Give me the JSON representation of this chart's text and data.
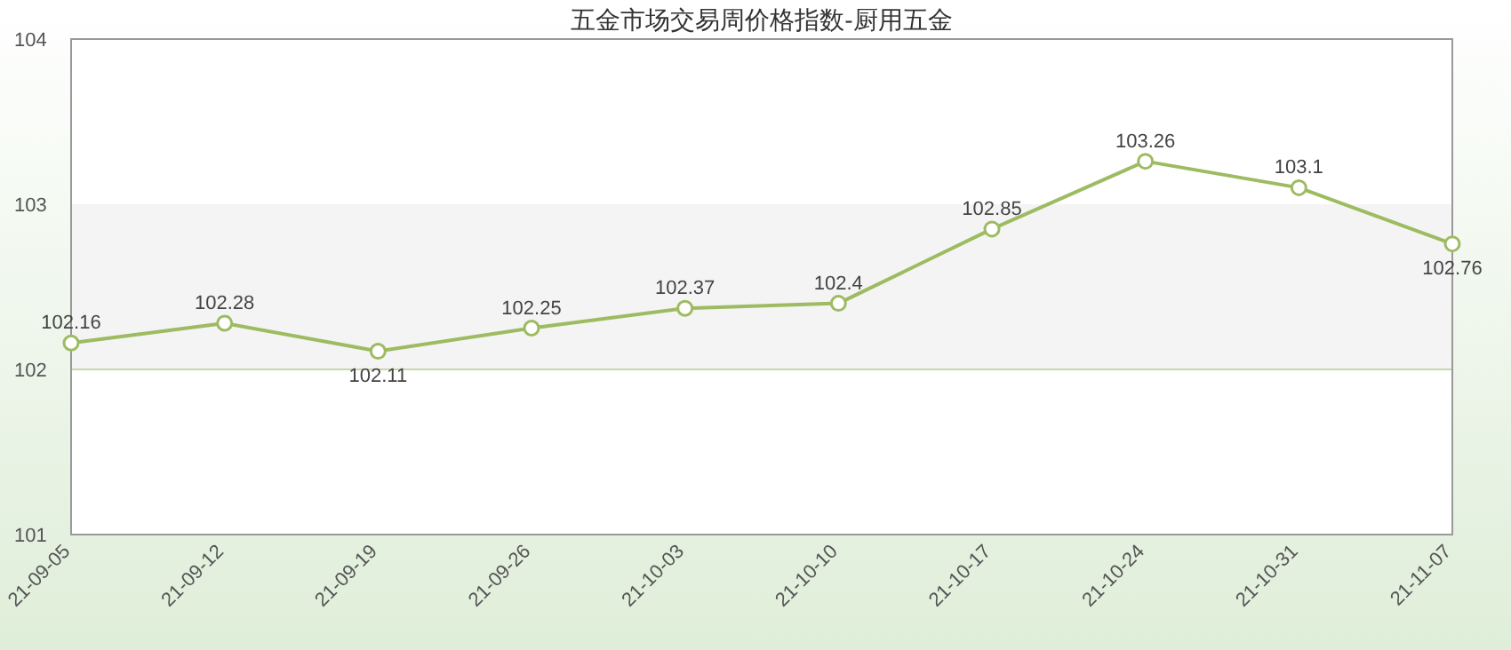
{
  "chart_data": {
    "type": "line",
    "title": "五金市场交易周价格指数-厨用五金",
    "categories": [
      "21-09-05",
      "21-09-12",
      "21-09-19",
      "21-09-26",
      "21-10-03",
      "21-10-10",
      "21-10-17",
      "21-10-24",
      "21-10-31",
      "21-11-07"
    ],
    "series": [
      {
        "color": "#9dbb61",
        "values": [
          102.16,
          102.28,
          102.11,
          102.25,
          102.37,
          102.4,
          102.85,
          103.26,
          103.1,
          102.76
        ]
      }
    ],
    "ylim": [
      101,
      104
    ],
    "yticks": [
      101,
      102,
      103,
      104
    ],
    "bands": [
      {
        "axis": "y",
        "from": 102,
        "to": 103,
        "color": "#f4f4f4"
      }
    ],
    "ref_lines": [
      {
        "axis": "y",
        "value": 102,
        "color": "#c5d9a8"
      }
    ],
    "marker": "circle",
    "data_labels": true,
    "grid": false
  }
}
